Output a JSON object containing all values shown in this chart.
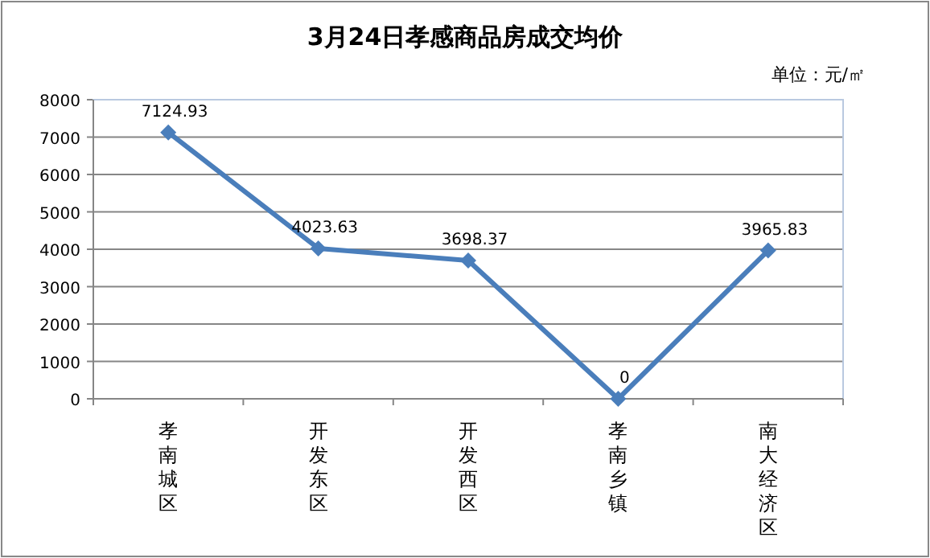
{
  "chart_data": {
    "type": "line",
    "title": "3月24日孝感商品房成交均价",
    "annotations": [
      "单位：元/㎡"
    ],
    "categories": [
      "孝南城区",
      "开发东区",
      "开发西区",
      "孝南乡镇",
      "南大经济区"
    ],
    "series": [
      {
        "color": "#4a7ebb",
        "values": [
          7124.93,
          4023.63,
          3698.37,
          0,
          3965.83
        ]
      }
    ],
    "ylim": [
      0,
      8000
    ],
    "yticks": [
      0,
      1000,
      2000,
      3000,
      4000,
      5000,
      6000,
      7000,
      8000
    ],
    "grid": "y",
    "marker": "diamond",
    "line_style": "solid",
    "data_labels": true
  }
}
